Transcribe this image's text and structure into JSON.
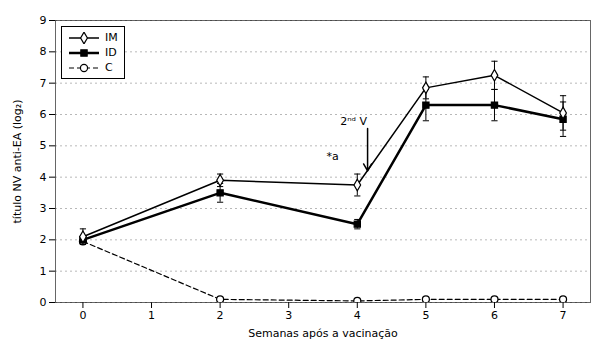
{
  "chart_data": {
    "type": "line",
    "xlabel": "Semanas após a vacinação",
    "ylabel": "título NV anti-EA (log₂)",
    "x": [
      0,
      2,
      4,
      5,
      6,
      7
    ],
    "series": [
      {
        "name": "IM",
        "color": "black",
        "marker": "open diamond",
        "line_style": "solid",
        "values": [
          2.1,
          3.9,
          3.75,
          6.85,
          7.25,
          6.05
        ],
        "yerr": [
          0.25,
          0.2,
          0.35,
          0.35,
          0.45,
          0.55
        ]
      },
      {
        "name": "ID",
        "color": "black",
        "marker": "filled square",
        "line_style": "thick",
        "values": [
          2.0,
          3.5,
          2.5,
          6.3,
          6.3,
          5.85
        ],
        "yerr": [
          0.1,
          0.3,
          0.15,
          0.5,
          0.5,
          0.55
        ]
      },
      {
        "name": "C",
        "color": "black",
        "marker": "open circle",
        "line_style": "dashed",
        "values": [
          1.95,
          0.1,
          0.05,
          0.1,
          0.1,
          0.1
        ]
      }
    ],
    "xlim": [
      -0.4,
      7.4
    ],
    "xticks": [
      0,
      1,
      2,
      3,
      4,
      5,
      6,
      7
    ],
    "ylim": [
      0,
      9
    ],
    "yticks": [
      0,
      1,
      2,
      3,
      4,
      5,
      6,
      7,
      8,
      9
    ],
    "grid": true,
    "legend": "upper left",
    "annotations": [
      {
        "text": "2ⁿᵈ V",
        "x": 3.75,
        "y": 5.65,
        "arrow": {
          "x1": 4.15,
          "y1": 5.55,
          "x2": 4.15,
          "y2": 4.2
        }
      },
      {
        "text": "*a",
        "x": 3.55,
        "y": 4.55
      }
    ]
  }
}
